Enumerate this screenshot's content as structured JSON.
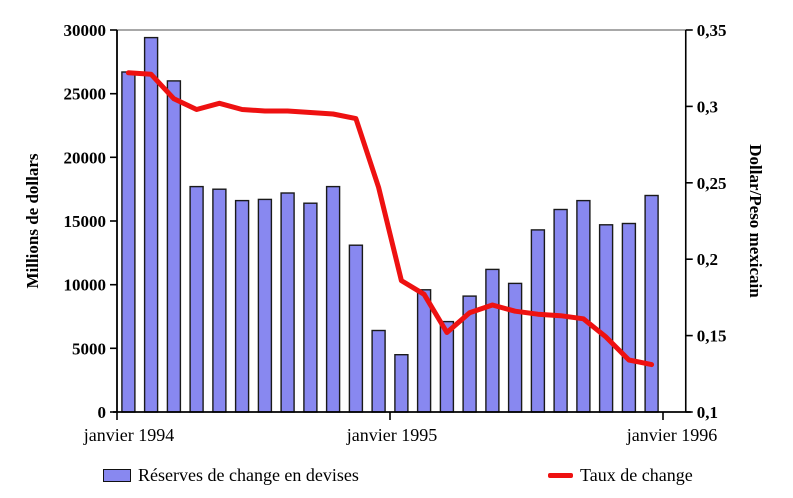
{
  "chart_data": {
    "type": "bar+line",
    "title": "",
    "x_axis": {
      "ticks": [
        {
          "label": "janvier 1994",
          "month_index": 0,
          "dx": 12
        },
        {
          "label": "janvier 1995",
          "month_index": 12,
          "dx": 2
        },
        {
          "label": "janvier 1996",
          "month_index": 24,
          "dx": 9
        }
      ]
    },
    "left_axis": {
      "title": "Millions de dollars",
      "range": [
        0,
        30000
      ],
      "ticks": [
        {
          "label": "0",
          "value": 0
        },
        {
          "label": "5000",
          "value": 5000
        },
        {
          "label": "10000",
          "value": 10000
        },
        {
          "label": "15000",
          "value": 15000
        },
        {
          "label": "20000",
          "value": 20000
        },
        {
          "label": "25000",
          "value": 25000
        },
        {
          "label": "30000",
          "value": 30000
        }
      ]
    },
    "right_axis": {
      "title": "Dollar/Peso mexicain",
      "range": [
        0.1,
        0.35
      ],
      "ticks": [
        {
          "label": "0,1",
          "value": 0.1
        },
        {
          "label": "0,15",
          "value": 0.15
        },
        {
          "label": "0,2",
          "value": 0.2
        },
        {
          "label": "0,25",
          "value": 0.25
        },
        {
          "label": "0,3",
          "value": 0.3
        },
        {
          "label": "0,35",
          "value": 0.35
        }
      ]
    },
    "series": [
      {
        "name": "Réserves de change en devises",
        "type": "bar",
        "axis": "left",
        "color": "#8888F0",
        "border_color": "#1A1A1A",
        "values": [
          26700,
          29400,
          26000,
          17700,
          17500,
          16600,
          16700,
          17200,
          16400,
          17700,
          13100,
          6400,
          4500,
          9600,
          7100,
          9100,
          11200,
          10100,
          14300,
          15900,
          16600,
          14700,
          14800,
          17000
        ]
      },
      {
        "name": "Taux de change",
        "type": "line",
        "axis": "right",
        "color": "#EE1111",
        "values": [
          0.322,
          0.321,
          0.305,
          0.298,
          0.302,
          0.298,
          0.297,
          0.297,
          0.296,
          0.295,
          0.292,
          0.247,
          0.186,
          0.177,
          0.152,
          0.165,
          0.17,
          0.166,
          0.164,
          0.163,
          0.161,
          0.149,
          0.134,
          0.131
        ]
      }
    ],
    "layout": {
      "grid": "off",
      "legend_position": "bottom",
      "frame_top_color": "#8C8C8C",
      "axis_color": "#000000"
    }
  }
}
